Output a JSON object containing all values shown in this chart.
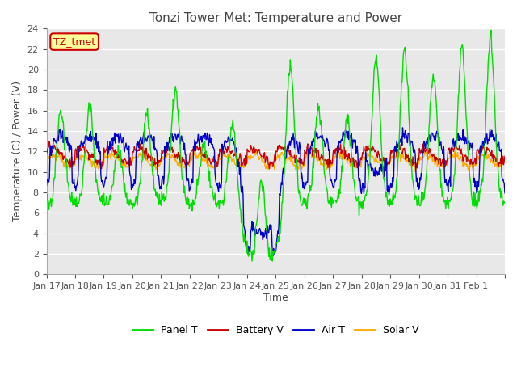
{
  "title": "Tonzi Tower Met: Temperature and Power",
  "xlabel": "Time",
  "ylabel": "Temperature (C) / Power (V)",
  "ylim": [
    0,
    24
  ],
  "yticks": [
    0,
    2,
    4,
    6,
    8,
    10,
    12,
    14,
    16,
    18,
    20,
    22,
    24
  ],
  "n_days": 16,
  "xtick_labels": [
    "Jan 17",
    "Jan 18",
    "Jan 19",
    "Jan 20",
    "Jan 21",
    "Jan 22",
    "Jan 23",
    "Jan 24",
    "Jan 25",
    "Jan 26",
    "Jan 27",
    "Jan 28",
    "Jan 29",
    "Jan 30",
    "Jan 31",
    "Feb 1",
    ""
  ],
  "colors": {
    "panel_t": "#00dd00",
    "battery_v": "#cc0000",
    "air_t": "#0000cc",
    "solar_v": "#ffaa00"
  },
  "legend_labels": [
    "Panel T",
    "Battery V",
    "Air T",
    "Solar V"
  ],
  "bg_color": "#e8e8e8",
  "annotation_text": "TZ_tmet",
  "annotation_color": "#cc0000",
  "annotation_bg": "#ffff99"
}
